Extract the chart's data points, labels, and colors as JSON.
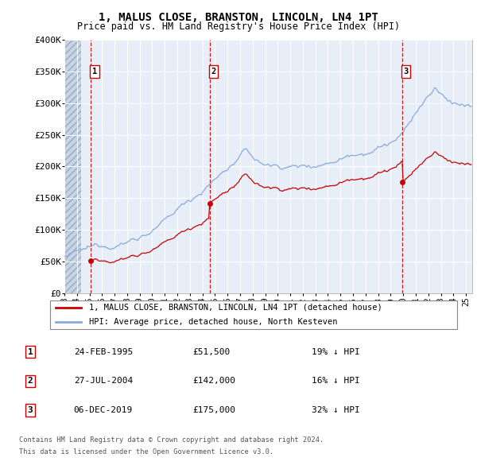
{
  "title": "1, MALUS CLOSE, BRANSTON, LINCOLN, LN4 1PT",
  "subtitle": "Price paid vs. HM Land Registry's House Price Index (HPI)",
  "legend_line1": "1, MALUS CLOSE, BRANSTON, LINCOLN, LN4 1PT (detached house)",
  "legend_line2": "HPI: Average price, detached house, North Kesteven",
  "footer1": "Contains HM Land Registry data © Crown copyright and database right 2024.",
  "footer2": "This data is licensed under the Open Government Licence v3.0.",
  "table": [
    {
      "num": "1",
      "date": "24-FEB-1995",
      "price": "£51,500",
      "hpi": "19% ↓ HPI"
    },
    {
      "num": "2",
      "date": "27-JUL-2004",
      "price": "£142,000",
      "hpi": "16% ↓ HPI"
    },
    {
      "num": "3",
      "date": "06-DEC-2019",
      "price": "£175,000",
      "hpi": "32% ↓ HPI"
    }
  ],
  "sale_dates": [
    1995.12,
    2004.57,
    2019.92
  ],
  "sale_prices": [
    51500,
    142000,
    175000
  ],
  "ylim": [
    0,
    400000
  ],
  "yticks": [
    0,
    50000,
    100000,
    150000,
    200000,
    250000,
    300000,
    350000,
    400000
  ],
  "plot_bg_color": "#e8eef8",
  "grid_color": "#ffffff",
  "hpi_color": "#88aadd",
  "sold_color": "#cc0000",
  "vline_color": "#cc0000",
  "box_color": "#cc0000",
  "hatch_color": "#c8d4e4"
}
